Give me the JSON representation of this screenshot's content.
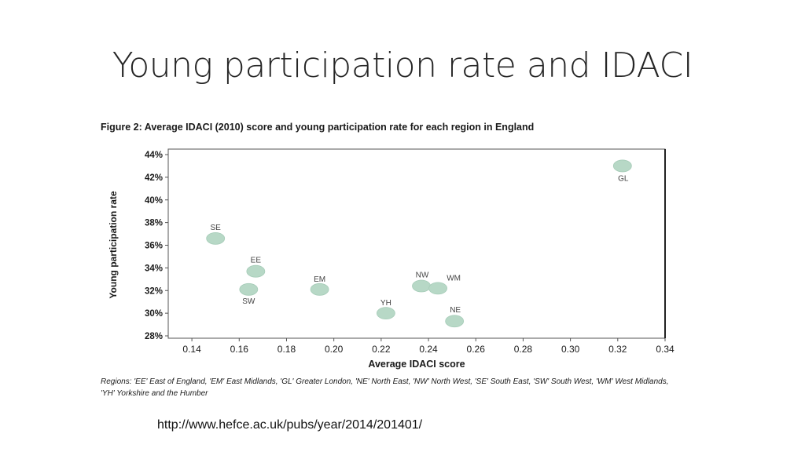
{
  "slide": {
    "title": "Young participation rate and IDACI",
    "source_url": "http://www.hefce.ac.uk/pubs/year/2014/201401/"
  },
  "figure": {
    "title": "Figure 2: Average IDACI (2010) score and young participation rate for each region in England",
    "caption": "Regions: 'EE' East of England, 'EM' East Midlands, 'GL' Greater London, 'NE' North East, 'NW' North West, 'SE' South East, 'SW' South West, 'WM' West Midlands, 'YH' Yorkshire and the Humber"
  },
  "chart_data": {
    "type": "scatter",
    "xlabel": "Average IDACI score",
    "ylabel": "Young participation rate",
    "xlim": [
      0.13,
      0.34
    ],
    "ylim": [
      28,
      44
    ],
    "x_ticks": [
      "0.14",
      "0.16",
      "0.18",
      "0.20",
      "0.22",
      "0.24",
      "0.26",
      "0.28",
      "0.30",
      "0.32",
      "0.34"
    ],
    "y_ticks": [
      "28%",
      "30%",
      "32%",
      "34%",
      "36%",
      "38%",
      "40%",
      "42%",
      "44%"
    ],
    "grid": false,
    "marker_color": "#b7d8c6",
    "points": [
      {
        "label": "SE",
        "x": 0.15,
        "y": 36.6
      },
      {
        "label": "EE",
        "x": 0.167,
        "y": 33.7
      },
      {
        "label": "SW",
        "x": 0.164,
        "y": 32.1
      },
      {
        "label": "EM",
        "x": 0.194,
        "y": 32.1
      },
      {
        "label": "YH",
        "x": 0.222,
        "y": 30.0
      },
      {
        "label": "NW",
        "x": 0.237,
        "y": 32.4
      },
      {
        "label": "WM",
        "x": 0.244,
        "y": 32.2
      },
      {
        "label": "NE",
        "x": 0.251,
        "y": 29.3
      },
      {
        "label": "GL",
        "x": 0.322,
        "y": 43.0
      }
    ]
  }
}
